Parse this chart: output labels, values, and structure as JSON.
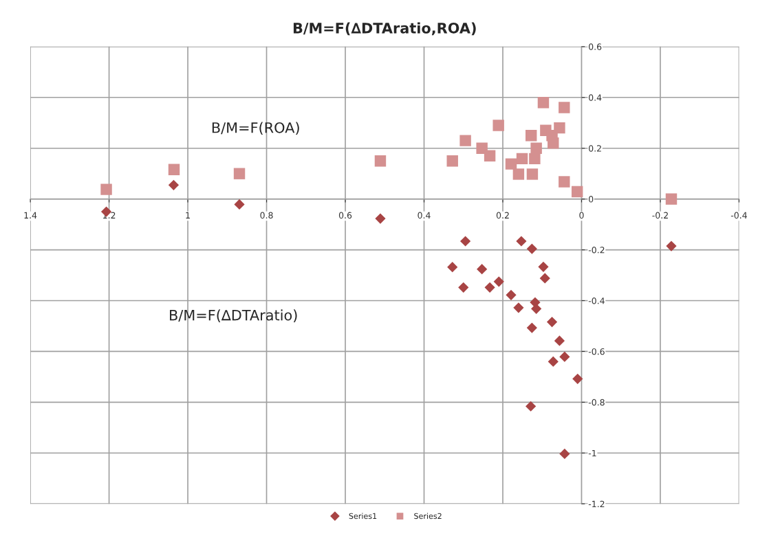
{
  "chart_data": {
    "type": "scatter",
    "title": "B/M=F(∆DTAratio,ROA)",
    "xlim": [
      1.4,
      -0.4
    ],
    "xticks": [
      1.4,
      1.2,
      1,
      0.8,
      0.6,
      0.4,
      0.2,
      0,
      -0.2,
      -0.4
    ],
    "ylim": [
      -1.2,
      0.6
    ],
    "yticks": [
      -1.2,
      -1,
      -0.8,
      -0.6,
      -0.4,
      -0.2,
      0,
      0.2,
      0.4,
      0.6
    ],
    "grid": true,
    "legend": "bottom",
    "annotations": [
      "B/M=F(ROA)",
      "B/M=F(∆DTAratio)"
    ],
    "series": [
      {
        "name": "Series1",
        "color": "#a84444",
        "marker": "diamond",
        "x": [
          1.207,
          1.036,
          0.869,
          0.511,
          0.295,
          0.153,
          0.126,
          0.328,
          0.253,
          0.097,
          0.093,
          0.21,
          0.3,
          0.233,
          0.179,
          0.16,
          0.118,
          0.115,
          0.075,
          0.126,
          0.056,
          0.043,
          0.072,
          0.01,
          0.129,
          0.043,
          -0.228
        ],
        "values": [
          -0.05,
          0.055,
          -0.021,
          -0.077,
          -0.166,
          -0.166,
          -0.196,
          -0.268,
          -0.276,
          -0.267,
          -0.312,
          -0.325,
          -0.348,
          -0.348,
          -0.378,
          -0.428,
          -0.407,
          -0.432,
          -0.484,
          -0.507,
          -0.558,
          -0.621,
          -0.64,
          -0.708,
          -0.816,
          -1.003,
          -0.185
        ]
      },
      {
        "name": "Series2",
        "color": "#d49090",
        "marker": "square",
        "x": [
          1.207,
          1.035,
          0.869,
          0.511,
          0.328,
          0.295,
          0.253,
          0.233,
          0.211,
          0.179,
          0.16,
          0.151,
          0.128,
          0.125,
          0.119,
          0.115,
          0.097,
          0.091,
          0.075,
          0.072,
          0.056,
          0.044,
          0.044,
          0.011,
          -0.228
        ],
        "values": [
          0.038,
          0.116,
          0.1,
          0.15,
          0.15,
          0.23,
          0.2,
          0.17,
          0.29,
          0.138,
          0.098,
          0.159,
          0.25,
          0.098,
          0.159,
          0.2,
          0.38,
          0.27,
          0.25,
          0.22,
          0.28,
          0.36,
          0.068,
          0.029,
          0.0
        ]
      }
    ]
  }
}
